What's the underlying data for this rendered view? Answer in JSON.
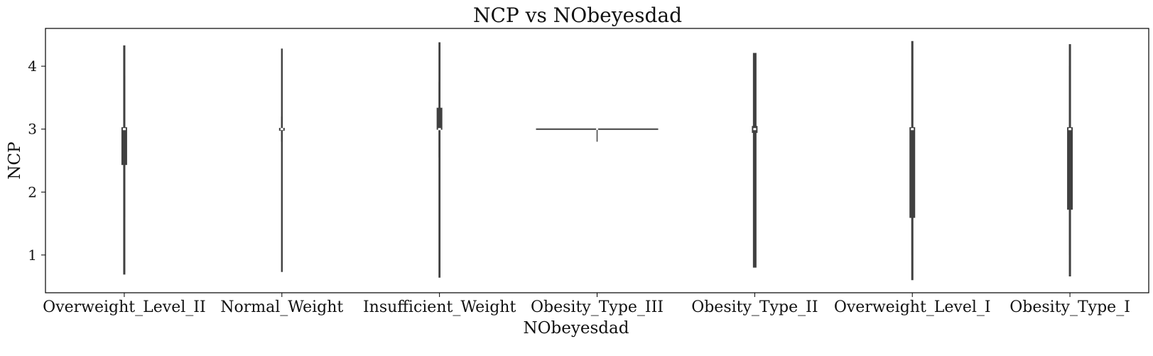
{
  "chart_data": {
    "type": "violin",
    "title": "NCP vs NObeyesdad",
    "xlabel": "NObeyesdad",
    "ylabel": "NCP",
    "ylim": [
      0.4,
      4.6
    ],
    "yticks": [
      1,
      2,
      3,
      4
    ],
    "ytick_labels": [
      "1",
      "2",
      "3",
      "4"
    ],
    "grid": false,
    "legend": "none",
    "colors": {
      "body": "#404040",
      "median": "#ffffff",
      "frame": "#000000"
    },
    "categories": [
      "Overweight_Level_II",
      "Normal_Weight",
      "Insufficient_Weight",
      "Obesity_Type_III",
      "Obesity_Type_II",
      "Overweight_Level_I",
      "Obesity_Type_I"
    ],
    "series": [
      {
        "category": "Overweight_Level_II",
        "min": 0.69,
        "q1": 2.43,
        "median": 3.0,
        "q3": 3.03,
        "max": 4.33,
        "whisker_low": 1.6,
        "whisker_high": 3.85,
        "halfwidth": 1.5
      },
      {
        "category": "Normal_Weight",
        "min": 0.73,
        "q1": 2.98,
        "median": 3.0,
        "q3": 3.02,
        "max": 4.28,
        "whisker_low": 2.8,
        "whisker_high": 3.2,
        "halfwidth": 1.2
      },
      {
        "category": "Insufficient_Weight",
        "min": 0.64,
        "q1": 2.99,
        "median": 3.0,
        "q3": 3.34,
        "max": 4.38,
        "whisker_low": 2.55,
        "whisker_high": 3.75,
        "halfwidth": 1.4
      },
      {
        "category": "Obesity_Type_III",
        "min": 2.8,
        "q1": 3.0,
        "median": 3.0,
        "q3": 3.0,
        "max": 3.0,
        "whisker_low": 2.8,
        "whisker_high": 3.0,
        "halfwidth": 86
      },
      {
        "category": "Obesity_Type_II",
        "min": 0.8,
        "q1": 2.94,
        "median": 3.0,
        "q3": 3.05,
        "max": 4.21,
        "whisker_low": 2.0,
        "whisker_high": 3.1,
        "halfwidth": 2.5
      },
      {
        "category": "Overweight_Level_I",
        "min": 0.6,
        "q1": 1.59,
        "median": 3.0,
        "q3": 3.03,
        "max": 4.4,
        "whisker_low": 1.0,
        "whisker_high": 4.0,
        "halfwidth": 1.5
      },
      {
        "category": "Obesity_Type_I",
        "min": 0.66,
        "q1": 1.72,
        "median": 3.0,
        "q3": 3.03,
        "max": 4.35,
        "whisker_low": 1.0,
        "whisker_high": 4.0,
        "halfwidth": 1.5
      }
    ]
  }
}
